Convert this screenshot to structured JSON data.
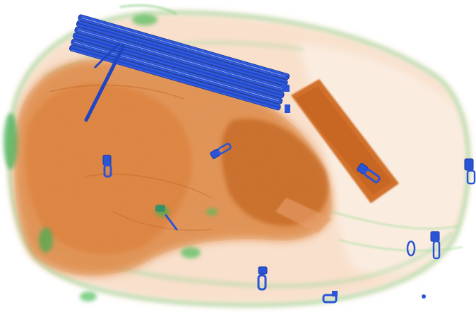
{
  "image": {
    "kind": "xray-baggage-scan",
    "palette": {
      "background": "#ffffff",
      "organic_light": "#f4c9a6",
      "organic": "#e48a4a",
      "organic_dense": "#c8621e",
      "inorganic_edge": "#8fd08a",
      "metal": "#2a54d8",
      "metal_dark": "#1a3a9e"
    },
    "objects": [
      "bag-outline",
      "organic-mass",
      "rectangular-block",
      "rod-bundle",
      "zipper-pulls"
    ]
  }
}
